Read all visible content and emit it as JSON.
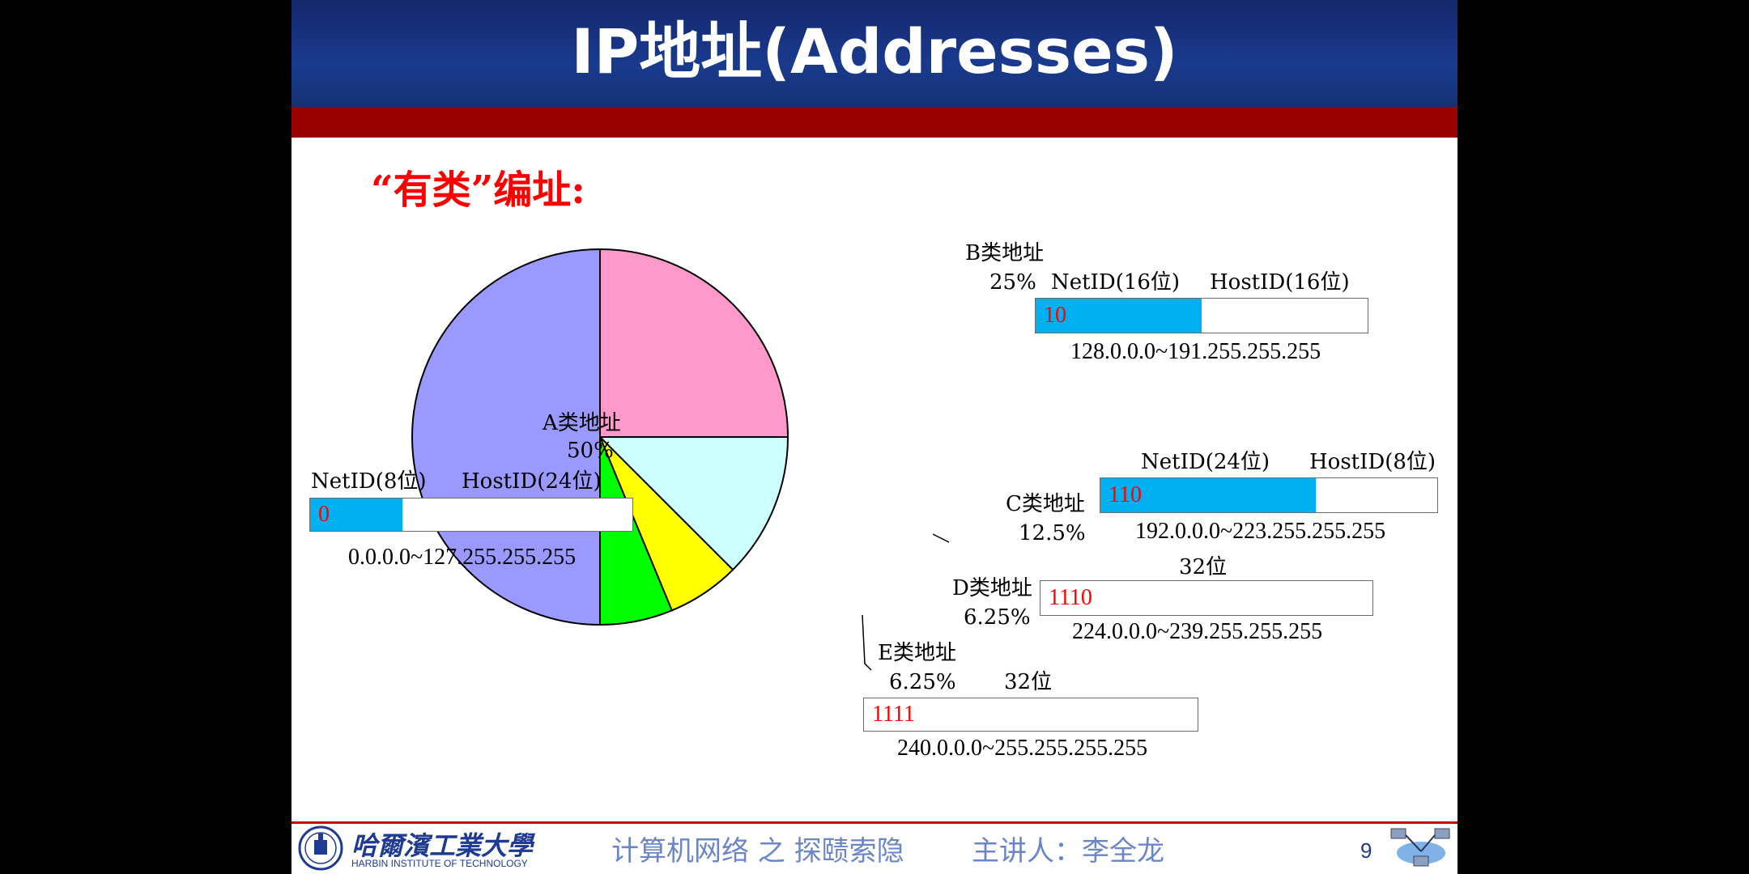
{
  "slide": {
    "title": "IP地址(Addresses)",
    "subheading": "“有类”编址:",
    "page_number": "9"
  },
  "colors": {
    "title_bar": "#1a3a8e",
    "red_bar": "#990000",
    "net_fill": "#00b0f0",
    "bits_text": "#ff0000",
    "footer_text": "#6b86c8"
  },
  "chart_data": {
    "type": "pie",
    "slices": [
      {
        "label": "A类地址",
        "value": 50,
        "percent_label": "50%",
        "color": "#9999ff"
      },
      {
        "label": "B类地址",
        "value": 25,
        "percent_label": "25%",
        "color": "#ff99cc"
      },
      {
        "label": "C类地址",
        "value": 12.5,
        "percent_label": "12.5%",
        "color": "#ccffff"
      },
      {
        "label": "D类地址",
        "value": 6.25,
        "percent_label": "6.25%",
        "color": "#ffff00"
      },
      {
        "label": "E类地址",
        "value": 6.25,
        "percent_label": "6.25%",
        "color": "#00ff00"
      }
    ]
  },
  "classes": {
    "a": {
      "net_label": "NetID(8位)",
      "host_label": "HostID(24位)",
      "bits": "0",
      "range": "0.0.0.0~127.255.255.255",
      "net_fraction": 0.2857
    },
    "b": {
      "net_label": "NetID(16位)",
      "host_label": "HostID(16位)",
      "bits": "10",
      "range": "128.0.0.0~191.255.255.255",
      "net_fraction": 0.5
    },
    "c": {
      "net_label": "NetID(24位)",
      "host_label": "HostID(8位)",
      "bits": "110",
      "range": "192.0.0.0~223.255.255.255",
      "net_fraction": 0.64
    },
    "d": {
      "width_label": "32位",
      "bits": "1110",
      "range": "224.0.0.0~239.255.255.255",
      "net_fraction": 0
    },
    "e": {
      "width_label": "32位",
      "bits": "1111",
      "range": "240.0.0.0~255.255.255.255",
      "net_fraction": 0
    }
  },
  "footer": {
    "course": "计算机网络 之 探赜索隐",
    "lecturer": "主讲人：李全龙",
    "logo_cn": "哈爾濱工業大學",
    "logo_en": "HARBIN INSTITUTE OF TECHNOLOGY"
  }
}
